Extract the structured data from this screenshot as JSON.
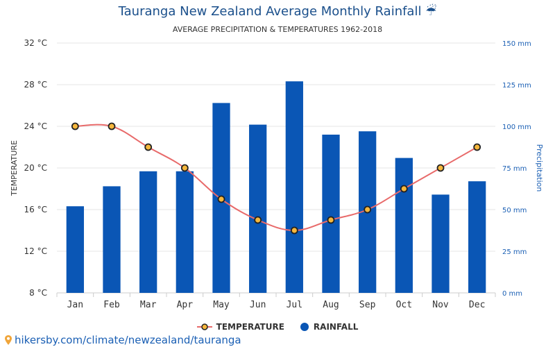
{
  "title": "Tauranga New Zealand Average Monthly Rainfall",
  "title_icon": "umbrella-icon",
  "subtitle": "AVERAGE PRECIPITATION & TEMPERATURES 1962-2018",
  "source_url": "hikersby.com/climate/newzealand/tauranga",
  "colors": {
    "bar": "#0a56b5",
    "line": "#e86a6a",
    "marker_fill": "#f6b73c",
    "title": "#1a4f8b"
  },
  "chart_data": {
    "type": "bar",
    "categories": [
      "Jan",
      "Feb",
      "Mar",
      "Apr",
      "May",
      "Jun",
      "Jul",
      "Aug",
      "Sep",
      "Oct",
      "Nov",
      "Dec"
    ],
    "series": [
      {
        "name": "RAINFALL",
        "type": "bar",
        "axis": "right",
        "values": [
          52,
          64,
          73,
          73,
          114,
          101,
          127,
          95,
          97,
          81,
          59,
          67
        ]
      },
      {
        "name": "TEMPERATURE",
        "type": "line",
        "axis": "left",
        "values": [
          24,
          24,
          22,
          20,
          17,
          15,
          14,
          15,
          16,
          18,
          20,
          22
        ]
      }
    ],
    "ylabel_left": "TEMPERATURE",
    "ylabel_right": "Precipitation",
    "ylim_left": [
      8,
      32
    ],
    "ylim_right": [
      0,
      150
    ],
    "left_ticks": [
      "8 °C",
      "12 °C",
      "16 °C",
      "20 °C",
      "24 °C",
      "28 °C",
      "32 °C"
    ],
    "right_ticks": [
      "0 mm",
      "25 mm",
      "50 mm",
      "75 mm",
      "100 mm",
      "125 mm",
      "150 mm"
    ],
    "grid": true,
    "legend_position": "bottom"
  }
}
